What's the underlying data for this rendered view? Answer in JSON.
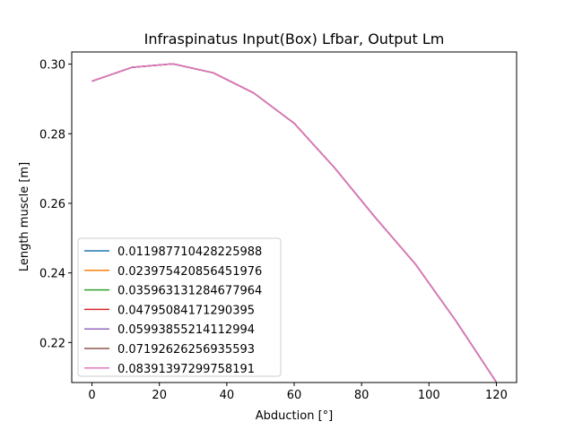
{
  "chart_data": {
    "type": "line",
    "title": "Infraspinatus Input(Box) Lfbar, Output Lm",
    "xlabel": "Abduction [°]",
    "ylabel": "Length muscle [m]",
    "xlim": [
      -6,
      126
    ],
    "ylim": [
      0.2085,
      0.3035
    ],
    "xticks": [
      0,
      20,
      40,
      60,
      80,
      100,
      120
    ],
    "yticks": [
      0.22,
      0.24,
      0.26,
      0.28,
      0.3
    ],
    "ytick_labels": [
      "0.22",
      "0.24",
      "0.26",
      "0.28",
      "0.30"
    ],
    "grid": false,
    "legend_position": "lower-left",
    "x": [
      0,
      12,
      24,
      36,
      48,
      60,
      72,
      84,
      96,
      108,
      120
    ],
    "series": [
      {
        "name": "0.011987710428225988",
        "color": "#1f77b4",
        "values": [
          0.2951,
          0.2991,
          0.3001,
          0.2975,
          0.2917,
          0.283,
          0.2702,
          0.256,
          0.2425,
          0.2262,
          0.2086
        ]
      },
      {
        "name": "0.023975420856451976",
        "color": "#ff7f0e",
        "values": [
          0.2951,
          0.2991,
          0.3001,
          0.2975,
          0.2917,
          0.283,
          0.2702,
          0.256,
          0.2425,
          0.2262,
          0.2086
        ]
      },
      {
        "name": "0.035963131284677964",
        "color": "#2ca02c",
        "values": [
          0.2951,
          0.2991,
          0.3001,
          0.2975,
          0.2917,
          0.283,
          0.2702,
          0.256,
          0.2425,
          0.2262,
          0.2086
        ]
      },
      {
        "name": "0.04795084171290395",
        "color": "#d62728",
        "values": [
          0.2951,
          0.2991,
          0.3001,
          0.2975,
          0.2917,
          0.283,
          0.2702,
          0.256,
          0.2425,
          0.2262,
          0.2086
        ]
      },
      {
        "name": "0.05993855214112994",
        "color": "#9467bd",
        "values": [
          0.2951,
          0.2991,
          0.3001,
          0.2975,
          0.2917,
          0.283,
          0.2702,
          0.256,
          0.2425,
          0.2262,
          0.2086
        ]
      },
      {
        "name": "0.07192626256935593",
        "color": "#8c564b",
        "values": [
          0.2951,
          0.2991,
          0.3001,
          0.2975,
          0.2917,
          0.283,
          0.2702,
          0.256,
          0.2425,
          0.2262,
          0.2086
        ]
      },
      {
        "name": "0.08391397299758191",
        "color": "#e377c2",
        "values": [
          0.2951,
          0.2991,
          0.3001,
          0.2975,
          0.2917,
          0.283,
          0.2702,
          0.256,
          0.2425,
          0.2262,
          0.2086
        ]
      }
    ]
  }
}
